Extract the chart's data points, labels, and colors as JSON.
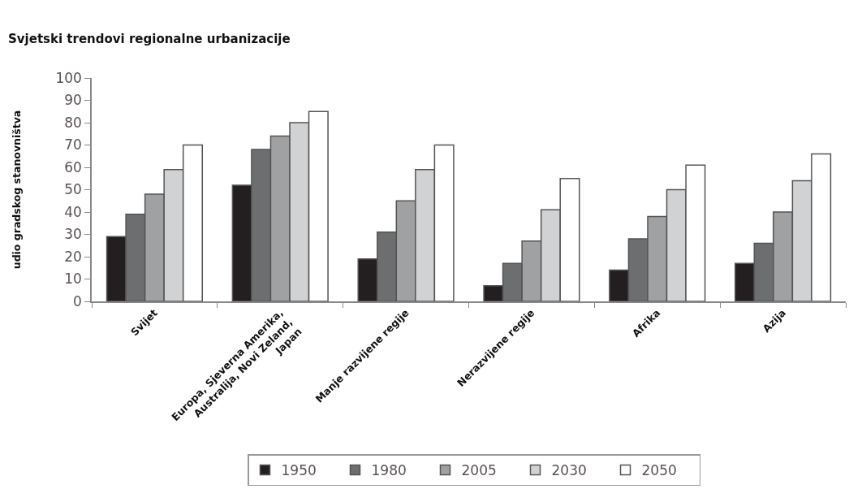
{
  "chart_data": {
    "type": "bar",
    "title": "Svjetski trendovi regionalne urbanizacije",
    "ylabel": "udio gradskog stanovništva",
    "categories": [
      "Svijet",
      "Europa, Sjeverna Amerika, Australija, Novi Zeland, Japan",
      "Manje razvijene regije",
      "Nerazvijene regije",
      "Afrika",
      "Azija"
    ],
    "series": [
      {
        "name": "1950",
        "color": "#231f20",
        "values": [
          29,
          52,
          19,
          7,
          14,
          17
        ]
      },
      {
        "name": "1980",
        "color": "#6d6e70",
        "values": [
          39,
          68,
          31,
          17,
          28,
          26
        ]
      },
      {
        "name": "2005",
        "color": "#a0a1a3",
        "values": [
          48,
          74,
          45,
          27,
          38,
          40
        ]
      },
      {
        "name": "2030",
        "color": "#d1d2d4",
        "values": [
          59,
          80,
          59,
          41,
          50,
          54
        ]
      },
      {
        "name": "2050",
        "color": "#ffffff",
        "values": [
          70,
          85,
          70,
          55,
          61,
          66
        ]
      }
    ],
    "ylim": [
      0,
      100
    ],
    "yticks": [
      0,
      10,
      20,
      30,
      40,
      50,
      60,
      70,
      80,
      90,
      100
    ],
    "grid": false,
    "legend": "bottom"
  }
}
